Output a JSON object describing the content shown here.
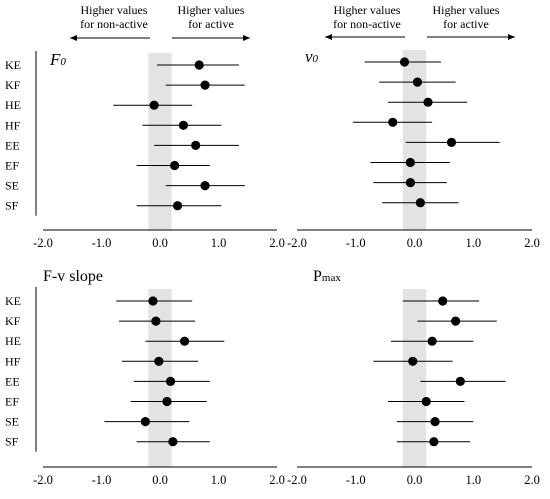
{
  "header": {
    "left": {
      "line1": "Higher values",
      "line2": "for non-active"
    },
    "right": {
      "line1": "Higher values",
      "line2": "for active"
    }
  },
  "colors": {
    "band": "#e3e3e3",
    "marker": "#000000",
    "axis": "#000000"
  },
  "chart_data": [
    {
      "type": "forest",
      "title_main": "F",
      "title_sub": "0",
      "title_style": "italic",
      "categories": [
        "KE",
        "KF",
        "HE",
        "HF",
        "EE",
        "EF",
        "SE",
        "SF"
      ],
      "xticks": [
        "-2.0",
        "-1.0",
        "0.0",
        "1.0",
        "2.0"
      ],
      "xlim": [
        -2.0,
        2.0
      ],
      "reference_band": [
        -0.2,
        0.2
      ],
      "estimate": [
        0.67,
        0.77,
        -0.1,
        0.4,
        0.61,
        0.25,
        0.77,
        0.3
      ],
      "ci_low": [
        -0.05,
        0.1,
        -0.8,
        -0.3,
        -0.1,
        -0.4,
        0.1,
        -0.4
      ],
      "ci_high": [
        1.35,
        1.45,
        0.55,
        1.05,
        1.35,
        0.85,
        1.45,
        1.05
      ]
    },
    {
      "type": "forest",
      "title_main": "v",
      "title_sub": "0",
      "title_style": "italic",
      "categories": [
        "KE",
        "KF",
        "HE",
        "HF",
        "EE",
        "EF",
        "SE",
        "SF"
      ],
      "xticks": [
        "-2.0",
        "-1.0",
        "0.0",
        "1.0",
        "2.0"
      ],
      "xlim": [
        -2.0,
        2.0
      ],
      "reference_band": [
        -0.2,
        0.2
      ],
      "estimate": [
        -0.17,
        0.05,
        0.23,
        -0.37,
        0.63,
        -0.07,
        -0.07,
        0.1
      ],
      "ci_low": [
        -0.85,
        -0.6,
        -0.45,
        -1.05,
        -0.15,
        -0.75,
        -0.7,
        -0.55
      ],
      "ci_high": [
        0.45,
        0.7,
        0.9,
        0.3,
        1.45,
        0.6,
        0.55,
        0.75
      ]
    },
    {
      "type": "forest",
      "title_main": "F-v slope",
      "title_sub": "",
      "title_style": "normal",
      "categories": [
        "KE",
        "KF",
        "HE",
        "HF",
        "EE",
        "EF",
        "SE",
        "SF"
      ],
      "xticks": [
        "-2.0",
        "-1.0",
        "0.0",
        "1.0",
        "2.0"
      ],
      "xlim": [
        -2.0,
        2.0
      ],
      "reference_band": [
        -0.2,
        0.2
      ],
      "estimate": [
        -0.12,
        -0.07,
        0.42,
        -0.02,
        0.18,
        0.12,
        -0.25,
        0.22
      ],
      "ci_low": [
        -0.75,
        -0.7,
        -0.25,
        -0.65,
        -0.45,
        -0.5,
        -0.95,
        -0.4
      ],
      "ci_high": [
        0.55,
        0.6,
        1.1,
        0.65,
        0.85,
        0.8,
        0.5,
        0.85
      ]
    },
    {
      "type": "forest",
      "title_main": "P",
      "title_sub": "max",
      "title_style": "normal",
      "categories": [
        "KE",
        "KF",
        "HE",
        "HF",
        "EE",
        "EF",
        "SE",
        "SF"
      ],
      "xticks": [
        "-2.0",
        "-1.0",
        "0.0",
        "1.0",
        "2.0"
      ],
      "xlim": [
        -2.0,
        2.0
      ],
      "reference_band": [
        -0.2,
        0.2
      ],
      "estimate": [
        0.48,
        0.7,
        0.3,
        -0.03,
        0.78,
        0.2,
        0.35,
        0.33
      ],
      "ci_low": [
        -0.2,
        0.05,
        -0.4,
        -0.7,
        0.1,
        -0.45,
        -0.3,
        -0.3
      ],
      "ci_high": [
        1.1,
        1.4,
        1.0,
        0.65,
        1.55,
        0.85,
        1.0,
        0.95
      ]
    }
  ]
}
